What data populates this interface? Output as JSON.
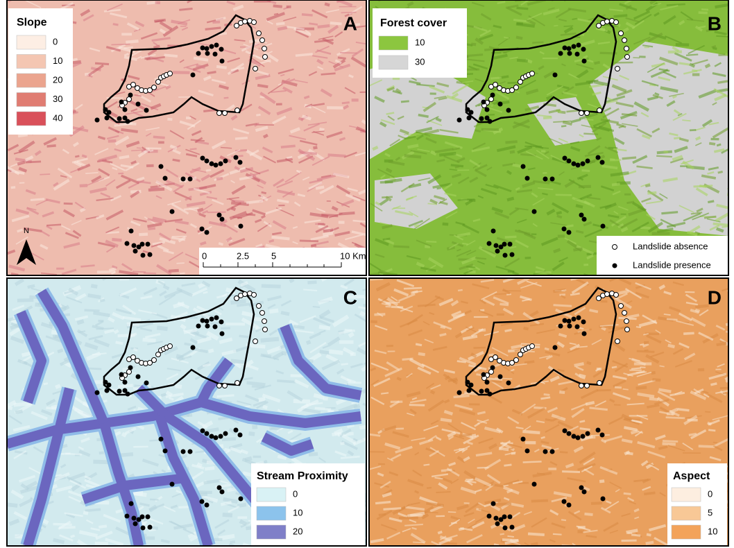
{
  "panels": [
    {
      "letter": "A",
      "legend": {
        "title": "Slope",
        "labels": [
          "0",
          "10",
          "20",
          "30",
          "40"
        ]
      }
    },
    {
      "letter": "B",
      "legend": {
        "title": "Forest cover",
        "labels": [
          "10",
          "30"
        ]
      }
    },
    {
      "letter": "C",
      "legend": {
        "title": "Stream Proximity",
        "labels": [
          "0",
          "10",
          "20"
        ]
      }
    },
    {
      "letter": "D",
      "legend": {
        "title": "Aspect",
        "labels": [
          "0",
          "5",
          "10"
        ]
      }
    }
  ],
  "point_legend": {
    "absence": "Landslide absence",
    "presence": "Landslide presence"
  },
  "scale_bar": {
    "labels": [
      "0",
      "2.5",
      "5",
      "10 Km"
    ]
  },
  "north": "N"
}
